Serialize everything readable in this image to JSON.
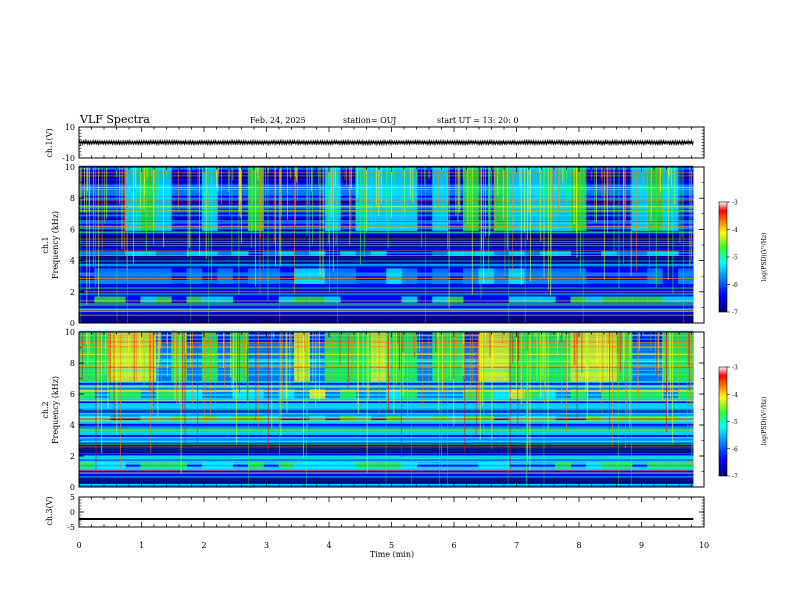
{
  "header": {
    "title": "VLF Spectra",
    "date": "Feb. 24, 2025",
    "station": "station= OUJ",
    "start_ut": "start  UT  =   13: 20: 0"
  },
  "colors": {
    "spectrogram_colormap": [
      "#00007a",
      "#0000ff",
      "#0090ff",
      "#00ffff",
      "#30ff30",
      "#ffff00",
      "#ff8000",
      "#ff0000",
      "#ffffff"
    ],
    "waveform": "#000000"
  },
  "chart_data": [
    {
      "type": "line",
      "name": "ch1-waveform",
      "ylabel": "ch.1(V)",
      "ylim": [
        -10,
        10
      ],
      "yticks": [
        "10",
        "-10"
      ],
      "description_values": {
        "mean_level": 0,
        "envelope": [
          -1.2,
          1.2
        ]
      }
    },
    {
      "type": "heatmap",
      "name": "ch1-spectrogram",
      "ylabel_line1": "ch.1",
      "ylabel_line2": "Frequency (kHz)",
      "ylim": [
        0,
        10
      ],
      "yticks": [
        "0",
        "2",
        "4",
        "6",
        "8",
        "10"
      ],
      "colorbar": {
        "label": "log(PSD)(V²/Hz)",
        "range": [
          -7,
          -3
        ],
        "ticks": [
          "-3",
          "-4",
          "-5",
          "-6",
          "-7"
        ]
      },
      "bright_bands_khz": [
        {
          "from": 5.9,
          "to": 10.0,
          "level": -5.2
        },
        {
          "from": 1.3,
          "to": 1.7,
          "level": -5.0
        },
        {
          "from": 4.3,
          "to": 4.6,
          "level": -5.5
        },
        {
          "from": 2.5,
          "to": 3.5,
          "level": -5.8
        }
      ],
      "dark_bands_khz": [
        {
          "from": 3.8,
          "to": 4.3,
          "level": -7.0
        },
        {
          "from": 5.0,
          "to": 5.6,
          "level": -6.8
        },
        {
          "from": 0.1,
          "to": 0.6,
          "level": -6.8
        }
      ]
    },
    {
      "type": "heatmap",
      "name": "ch2-spectrogram",
      "ylabel_line1": "ch.2",
      "ylabel_line2": "Frequency (kHz)",
      "ylim": [
        0,
        10
      ],
      "yticks": [
        "0",
        "2",
        "4",
        "6",
        "8",
        "10"
      ],
      "colorbar": {
        "label": "log(PSD)(V²/Hz)",
        "range": [
          -7,
          -3
        ],
        "ticks": [
          "-3",
          "-4",
          "-5",
          "-6",
          "-7"
        ]
      },
      "bright_bands_khz": [
        {
          "from": 6.8,
          "to": 10.0,
          "level": -4.6
        },
        {
          "from": 5.7,
          "to": 6.3,
          "level": -4.8
        },
        {
          "from": 4.3,
          "to": 4.6,
          "level": -5.0
        },
        {
          "from": 1.2,
          "to": 1.6,
          "level": -5.0
        }
      ],
      "dark_bands_khz": [
        {
          "from": 2.2,
          "to": 2.8,
          "level": -6.8
        },
        {
          "from": 0.2,
          "to": 0.6,
          "level": -6.8
        }
      ]
    },
    {
      "type": "line",
      "name": "ch3-waveform",
      "ylabel": "ch.3(V)",
      "ylim": [
        -5,
        5
      ],
      "yticks": [
        "5",
        "0",
        "-5"
      ],
      "description_values": {
        "mean_level": -2.2,
        "envelope": [
          -2.4,
          -2.0
        ]
      }
    }
  ],
  "x_axis": {
    "label": "Time  (min)",
    "xlim": [
      0,
      10
    ],
    "ticks": [
      "0",
      "1",
      "2",
      "3",
      "4",
      "5",
      "6",
      "7",
      "8",
      "9",
      "10"
    ],
    "data_end_min": 9.83
  }
}
